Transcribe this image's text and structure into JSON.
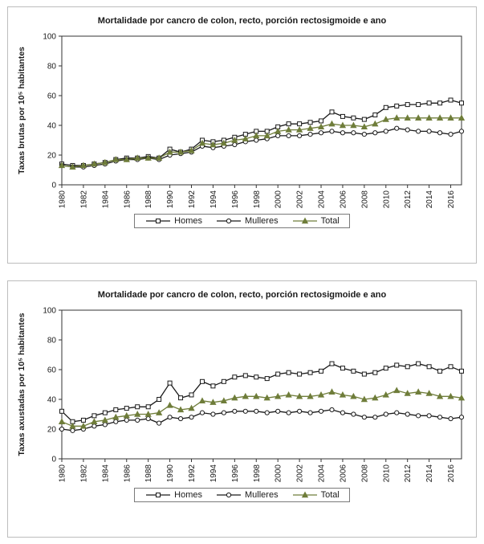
{
  "page": {
    "background": "#ffffff",
    "panel_border": "#bdbdbd"
  },
  "colors": {
    "homes": "#1a1a1a",
    "mulleres": "#1a1a1a",
    "total": "#6f7d3a",
    "axis": "#333333",
    "marker_fill": "#ffffff"
  },
  "legend": {
    "labels": [
      "Homes",
      "Mulleres",
      "Total"
    ]
  },
  "chart_data": [
    {
      "type": "line",
      "title": "Mortalidade por cancro de colon, recto, porción rectosigmoide e ano",
      "xlabel": "",
      "ylabel": "Taxas brutas por 10⁵ habitantes",
      "ylim": [
        0,
        100
      ],
      "yticks": [
        0,
        20,
        40,
        60,
        80,
        100
      ],
      "grid": false,
      "legend_position": "bottom",
      "x": [
        1980,
        1981,
        1982,
        1983,
        1984,
        1985,
        1986,
        1987,
        1988,
        1989,
        1990,
        1991,
        1992,
        1993,
        1994,
        1995,
        1996,
        1997,
        1998,
        1999,
        2000,
        2001,
        2002,
        2003,
        2004,
        2005,
        2006,
        2007,
        2008,
        2009,
        2010,
        2011,
        2012,
        2013,
        2014,
        2015,
        2016,
        2017
      ],
      "x_tick_labels": [
        "1980",
        "1982",
        "1984",
        "1986",
        "1988",
        "1990",
        "1992",
        "1994",
        "1996",
        "1998",
        "2000",
        "2002",
        "2004",
        "2006",
        "2008",
        "2010",
        "2012",
        "2014",
        "2016"
      ],
      "series": [
        {
          "name": "Homes",
          "marker": "square",
          "color": "#1a1a1a",
          "marker_fill": "#ffffff",
          "values": [
            14,
            13,
            13,
            14,
            15,
            17,
            18,
            18,
            19,
            18,
            24,
            22,
            24,
            30,
            29,
            30,
            32,
            34,
            36,
            36,
            39,
            41,
            41,
            42,
            43,
            49,
            46,
            45,
            44,
            47,
            52,
            53,
            54,
            54,
            55,
            55,
            57,
            55
          ]
        },
        {
          "name": "Mulleres",
          "marker": "circle",
          "color": "#1a1a1a",
          "marker_fill": "#ffffff",
          "values": [
            13,
            12,
            12,
            13,
            14,
            16,
            17,
            17,
            18,
            17,
            20,
            21,
            22,
            26,
            25,
            26,
            27,
            29,
            30,
            31,
            33,
            33,
            33,
            34,
            35,
            36,
            35,
            35,
            34,
            35,
            36,
            38,
            37,
            36,
            36,
            35,
            34,
            36
          ]
        },
        {
          "name": "Total",
          "marker": "triangle",
          "color": "#6f7d3a",
          "marker_fill": "#6f7d3a",
          "values": [
            13,
            12,
            13,
            14,
            15,
            17,
            17,
            18,
            18,
            18,
            22,
            22,
            23,
            28,
            27,
            28,
            30,
            31,
            33,
            33,
            36,
            37,
            37,
            38,
            39,
            41,
            40,
            40,
            39,
            41,
            44,
            45,
            45,
            45,
            45,
            45,
            45,
            45
          ]
        }
      ]
    },
    {
      "type": "line",
      "title": "Mortalidade por cancro de colon, recto, porción rectosigmoide e ano",
      "xlabel": "",
      "ylabel": "Taxas axustadas por 10⁵ habitantes",
      "ylim": [
        0,
        100
      ],
      "yticks": [
        0,
        20,
        40,
        60,
        80,
        100
      ],
      "grid": false,
      "legend_position": "bottom",
      "x": [
        1980,
        1981,
        1982,
        1983,
        1984,
        1985,
        1986,
        1987,
        1988,
        1989,
        1990,
        1991,
        1992,
        1993,
        1994,
        1995,
        1996,
        1997,
        1998,
        1999,
        2000,
        2001,
        2002,
        2003,
        2004,
        2005,
        2006,
        2007,
        2008,
        2009,
        2010,
        2011,
        2012,
        2013,
        2014,
        2015,
        2016,
        2017
      ],
      "x_tick_labels": [
        "1980",
        "1982",
        "1984",
        "1986",
        "1988",
        "1990",
        "1992",
        "1994",
        "1996",
        "1998",
        "2000",
        "2002",
        "2004",
        "2006",
        "2008",
        "2010",
        "2012",
        "2014",
        "2016"
      ],
      "series": [
        {
          "name": "Homes",
          "marker": "square",
          "color": "#1a1a1a",
          "marker_fill": "#ffffff",
          "values": [
            32,
            25,
            26,
            29,
            31,
            33,
            34,
            35,
            35,
            40,
            51,
            41,
            43,
            52,
            49,
            52,
            55,
            56,
            55,
            54,
            57,
            58,
            57,
            58,
            59,
            64,
            61,
            59,
            57,
            58,
            61,
            63,
            62,
            64,
            62,
            59,
            62,
            59
          ]
        },
        {
          "name": "Mulleres",
          "marker": "circle",
          "color": "#1a1a1a",
          "marker_fill": "#ffffff",
          "values": [
            20,
            19,
            20,
            22,
            23,
            25,
            26,
            26,
            27,
            24,
            28,
            27,
            28,
            31,
            30,
            31,
            32,
            32,
            32,
            31,
            32,
            31,
            32,
            31,
            32,
            33,
            31,
            30,
            28,
            28,
            30,
            31,
            30,
            29,
            29,
            28,
            27,
            28
          ]
        },
        {
          "name": "Total",
          "marker": "triangle",
          "color": "#6f7d3a",
          "marker_fill": "#6f7d3a",
          "values": [
            25,
            22,
            22,
            25,
            26,
            28,
            29,
            30,
            30,
            31,
            36,
            33,
            34,
            39,
            38,
            39,
            41,
            42,
            42,
            41,
            42,
            43,
            42,
            42,
            43,
            45,
            43,
            42,
            40,
            41,
            43,
            46,
            44,
            45,
            44,
            42,
            42,
            41
          ]
        }
      ]
    }
  ]
}
